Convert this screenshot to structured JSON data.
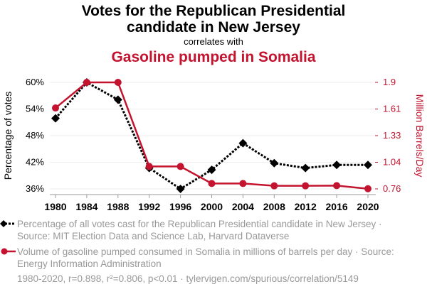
{
  "title_line1": "Votes for the Republican Presidential",
  "title_line2": "candidate in New Jersey",
  "correlates": "correlates with",
  "subtitle": "Gasoline pumped in Somalia",
  "footer": "1980-2020, r=0.898, r²=0.806, p<0.01 · tylervigen.com/spurious/correlation/5149",
  "chart_data": {
    "type": "line",
    "x": [
      1980,
      1984,
      1988,
      1992,
      1996,
      2000,
      2004,
      2008,
      2012,
      2016,
      2020
    ],
    "xticks": [
      "1980",
      "1984",
      "1988",
      "1992",
      "1996",
      "2000",
      "2004",
      "2008",
      "2012",
      "2016",
      "2020"
    ],
    "ylabel_left": "Percentage of votes",
    "ylabel_right": "Million Barrels/Day",
    "ylim_left": [
      36,
      60
    ],
    "ylim_right": [
      0.76,
      1.9
    ],
    "yticks_left": [
      "36%",
      "42%",
      "48%",
      "54%",
      "60%"
    ],
    "yticks_left_values": [
      36,
      42,
      48,
      54,
      60
    ],
    "yticks_right": [
      "0.76",
      "1.04",
      "1.33",
      "1.61",
      "1.9"
    ],
    "yticks_right_values": [
      0.76,
      1.045,
      1.33,
      1.615,
      1.9
    ],
    "grid": true,
    "series": [
      {
        "name": "Percentage of all votes cast for the Republican Presidential candidate in New Jersey · Source: MIT Election Data and Science Lab, Harvard Dataverse",
        "axis": "left",
        "color": "#000000",
        "marker": "diamond",
        "dash": true,
        "values": [
          51.9,
          60.0,
          56.1,
          40.7,
          36.0,
          40.3,
          46.3,
          41.8,
          40.7,
          41.4,
          41.4
        ]
      },
      {
        "name": "Volume of gasoline pumped consumed in Somalia in millions of barrels per day · Source: Energy Information Administration",
        "axis": "right",
        "color": "#c4132e",
        "marker": "circle",
        "dash": false,
        "values": [
          1.626,
          1.9,
          1.9,
          1.0,
          1.0,
          0.818,
          0.818,
          0.793,
          0.793,
          0.795,
          0.762
        ]
      }
    ]
  }
}
